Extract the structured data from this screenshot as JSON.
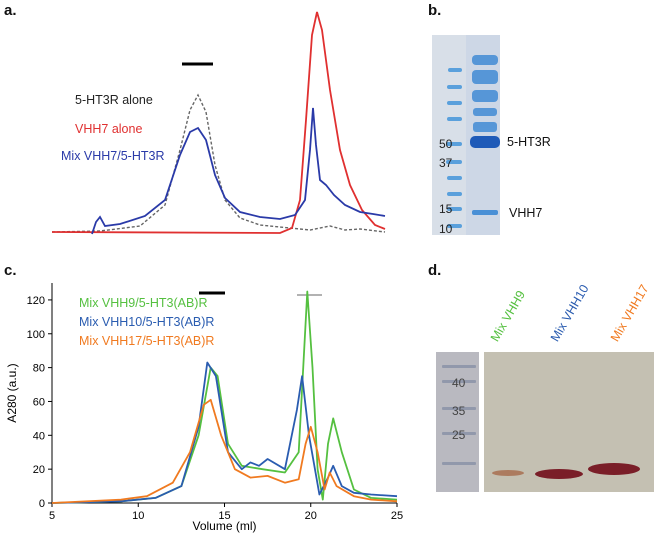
{
  "panels": {
    "a": {
      "label": "a.",
      "legend": [
        {
          "text": "5-HT3R alone",
          "color": "#222222"
        },
        {
          "text": "VHH7 alone",
          "color": "#e03030"
        },
        {
          "text": "Mix VHH7/5-HT3R",
          "color": "#2a3aa8"
        }
      ]
    },
    "b": {
      "label": "b.",
      "markers": [
        "50",
        "37",
        "15",
        "10"
      ],
      "bands": [
        "5-HT3R",
        "VHH7"
      ]
    },
    "c": {
      "label": "c.",
      "legend": [
        {
          "text": "Mix VHH9/5-HT3(AB)R",
          "color": "#55c040"
        },
        {
          "text": "Mix VHH10/5-HT3(AB)R",
          "color": "#2a5cb0"
        },
        {
          "text": "Mix VHH17/5-HT3(AB)R",
          "color": "#f07a20"
        }
      ]
    },
    "d": {
      "label": "d.",
      "markers": [
        "40",
        "35",
        "25"
      ],
      "lanes": [
        {
          "text": "Mix VHH9",
          "color": "#55c040"
        },
        {
          "text": "Mix VHH10",
          "color": "#2a5cb0"
        },
        {
          "text": "Mix VHH17",
          "color": "#f07a20"
        }
      ]
    }
  },
  "chart_data": {
    "type": "line",
    "xlabel": "Volume (ml)",
    "ylabel": "A280 (a.u.)",
    "xlim": [
      5,
      25
    ],
    "ylim": [
      0,
      130
    ],
    "x_ticks": [
      "5",
      "10",
      "15",
      "20",
      "25"
    ],
    "y_ticks": [
      "0",
      "20",
      "40",
      "60",
      "80",
      "100",
      "120"
    ],
    "series": [
      {
        "name": "Mix VHH9/5-HT3(AB)R",
        "color": "#55c040",
        "x": [
          5,
          9,
          11,
          12.5,
          13.5,
          14.2,
          14.6,
          15.2,
          16,
          17.2,
          18.5,
          19.3,
          19.8,
          20.1,
          20.4,
          20.7,
          21.0,
          21.3,
          21.8,
          22.5,
          23.5,
          25
        ],
        "y": [
          0,
          1,
          3,
          10,
          40,
          80,
          75,
          35,
          22,
          20,
          18,
          30,
          125,
          80,
          20,
          2,
          35,
          50,
          30,
          8,
          3,
          2
        ]
      },
      {
        "name": "Mix VHH10/5-HT3(AB)R",
        "color": "#2a5cb0",
        "x": [
          5,
          9,
          11,
          12.5,
          13.5,
          14.0,
          14.5,
          15.2,
          16,
          16.5,
          17,
          17.5,
          18.5,
          19.2,
          19.5,
          19.9,
          20.5,
          21,
          21.3,
          21.8,
          22.5,
          23.5,
          25
        ],
        "y": [
          0,
          1,
          3,
          10,
          45,
          83,
          75,
          30,
          20,
          24,
          22,
          26,
          20,
          55,
          75,
          40,
          5,
          15,
          22,
          10,
          6,
          5,
          4
        ]
      },
      {
        "name": "Mix VHH17/5-HT3(AB)R",
        "color": "#f07a20",
        "x": [
          5,
          9,
          10.5,
          12,
          13,
          13.8,
          14.2,
          14.8,
          15.6,
          16.5,
          17.5,
          18.5,
          19.3,
          19.7,
          20.0,
          20.4,
          20.8,
          21.1,
          21.5,
          22.5,
          23.5,
          25
        ],
        "y": [
          0,
          2,
          4,
          12,
          30,
          58,
          61,
          40,
          20,
          15,
          16,
          12,
          14,
          35,
          45,
          30,
          8,
          18,
          10,
          4,
          2,
          1
        ]
      }
    ]
  }
}
